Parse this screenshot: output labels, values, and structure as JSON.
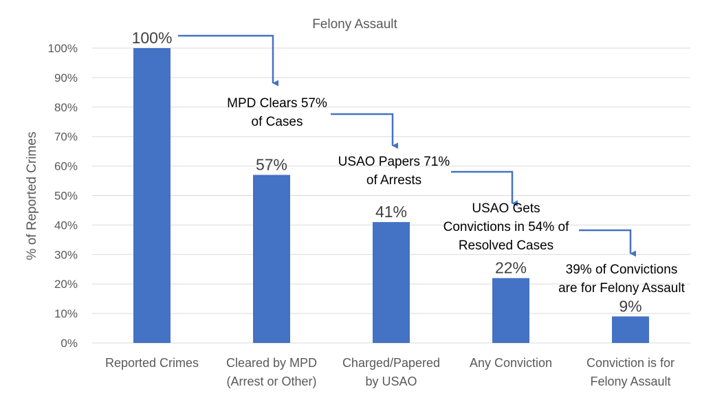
{
  "chart_data": {
    "type": "bar",
    "title": "Felony Assault",
    "ylabel": "% of Reported Crimes",
    "xlabel": "",
    "ylim": [
      0,
      100
    ],
    "yticks": [
      0,
      10,
      20,
      30,
      40,
      50,
      60,
      70,
      80,
      90,
      100
    ],
    "tick_suffix": "%",
    "grid": true,
    "bar_color": "#4472C4",
    "categories": [
      [
        "Reported Crimes"
      ],
      [
        "Cleared by MPD",
        "(Arrest or Other)"
      ],
      [
        "Charged/Papered",
        "by USAO"
      ],
      [
        "Any Conviction"
      ],
      [
        "Conviction is for",
        "Felony Assault"
      ]
    ],
    "values": [
      100,
      57,
      41,
      22,
      9
    ],
    "data_labels": [
      "100%",
      "57%",
      "41%",
      "22%",
      "9%"
    ],
    "annotations": [
      [
        "MPD Clears 57%",
        "of Cases"
      ],
      [
        "USAO Papers 71%",
        "of Arrests"
      ],
      [
        "USAO Gets",
        "Convictions in 54% of",
        "Resolved Cases"
      ],
      [
        "39% of Convictions",
        "are for Felony Assault"
      ]
    ],
    "annotation_color": "#4472C4"
  }
}
